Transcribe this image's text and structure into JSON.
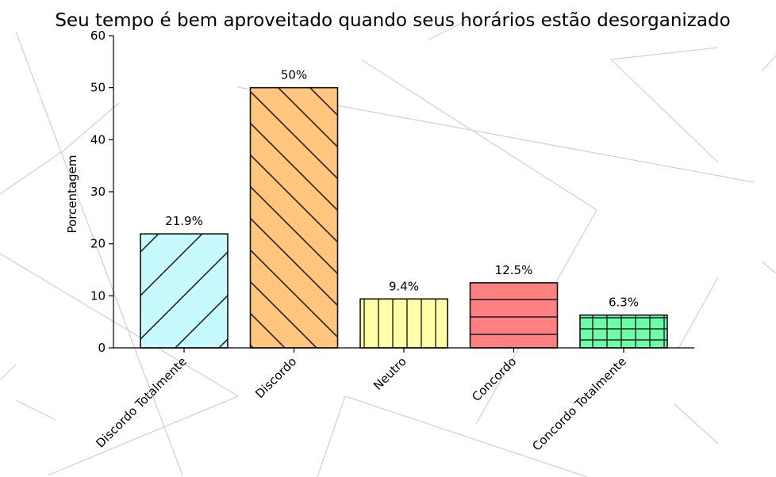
{
  "chart_data": {
    "type": "bar",
    "title": "Seu tempo é bem aproveitado quando seus horários estão desorganizado",
    "xlabel": "",
    "ylabel": "Porcentagem",
    "ylim": [
      0,
      60
    ],
    "yticks": [
      0,
      10,
      20,
      30,
      40,
      50,
      60
    ],
    "categories": [
      "Discordo Totalmente",
      "Discordo",
      "Neutro",
      "Concordo",
      "Concordo Totalmente"
    ],
    "values": [
      21.9,
      50,
      9.4,
      12.5,
      6.3
    ],
    "data_labels": [
      "21.9%",
      "50%",
      "9.4%",
      "12.5%",
      "6.3%"
    ],
    "colors": [
      "#c8fbfd",
      "#ffc680",
      "#ffffa8",
      "#ff8080",
      "#6ffca9"
    ],
    "hatches": [
      "/",
      "\\",
      "|",
      "-",
      "+"
    ],
    "grid": false
  }
}
